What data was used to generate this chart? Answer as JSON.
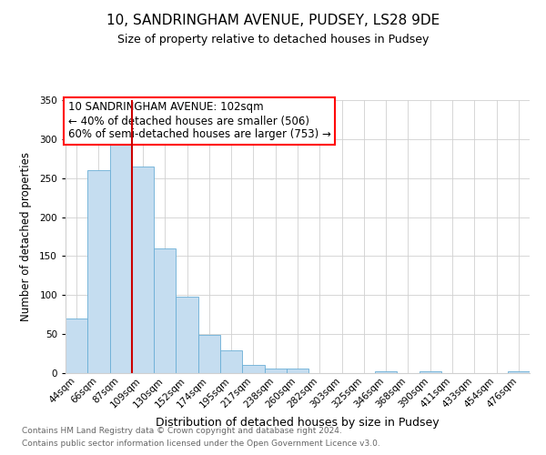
{
  "title": "10, SANDRINGHAM AVENUE, PUDSEY, LS28 9DE",
  "subtitle": "Size of property relative to detached houses in Pudsey",
  "xlabel": "Distribution of detached houses by size in Pudsey",
  "ylabel": "Number of detached properties",
  "bin_labels": [
    "44sqm",
    "66sqm",
    "87sqm",
    "109sqm",
    "130sqm",
    "152sqm",
    "174sqm",
    "195sqm",
    "217sqm",
    "238sqm",
    "260sqm",
    "282sqm",
    "303sqm",
    "325sqm",
    "346sqm",
    "368sqm",
    "390sqm",
    "411sqm",
    "433sqm",
    "454sqm",
    "476sqm"
  ],
  "bar_heights": [
    70,
    260,
    295,
    265,
    160,
    98,
    49,
    29,
    10,
    6,
    6,
    0,
    0,
    0,
    2,
    0,
    2,
    0,
    0,
    0,
    2
  ],
  "bar_color": "#c5ddf0",
  "bar_edge_color": "#6aaed6",
  "vline_position": 2.5,
  "vline_color": "#cc0000",
  "ylim": [
    0,
    350
  ],
  "yticks": [
    0,
    50,
    100,
    150,
    200,
    250,
    300,
    350
  ],
  "annotation_title": "10 SANDRINGHAM AVENUE: 102sqm",
  "annotation_line1": "← 40% of detached houses are smaller (506)",
  "annotation_line2": "60% of semi-detached houses are larger (753) →",
  "footer1": "Contains HM Land Registry data © Crown copyright and database right 2024.",
  "footer2": "Contains public sector information licensed under the Open Government Licence v3.0.",
  "background_color": "#ffffff",
  "grid_color": "#d0d0d0",
  "title_fontsize": 11,
  "subtitle_fontsize": 9,
  "xlabel_fontsize": 9,
  "ylabel_fontsize": 8.5,
  "tick_fontsize": 7.5,
  "footer_fontsize": 6.5,
  "footer_color": "#666666",
  "ann_fontsize": 8.5
}
